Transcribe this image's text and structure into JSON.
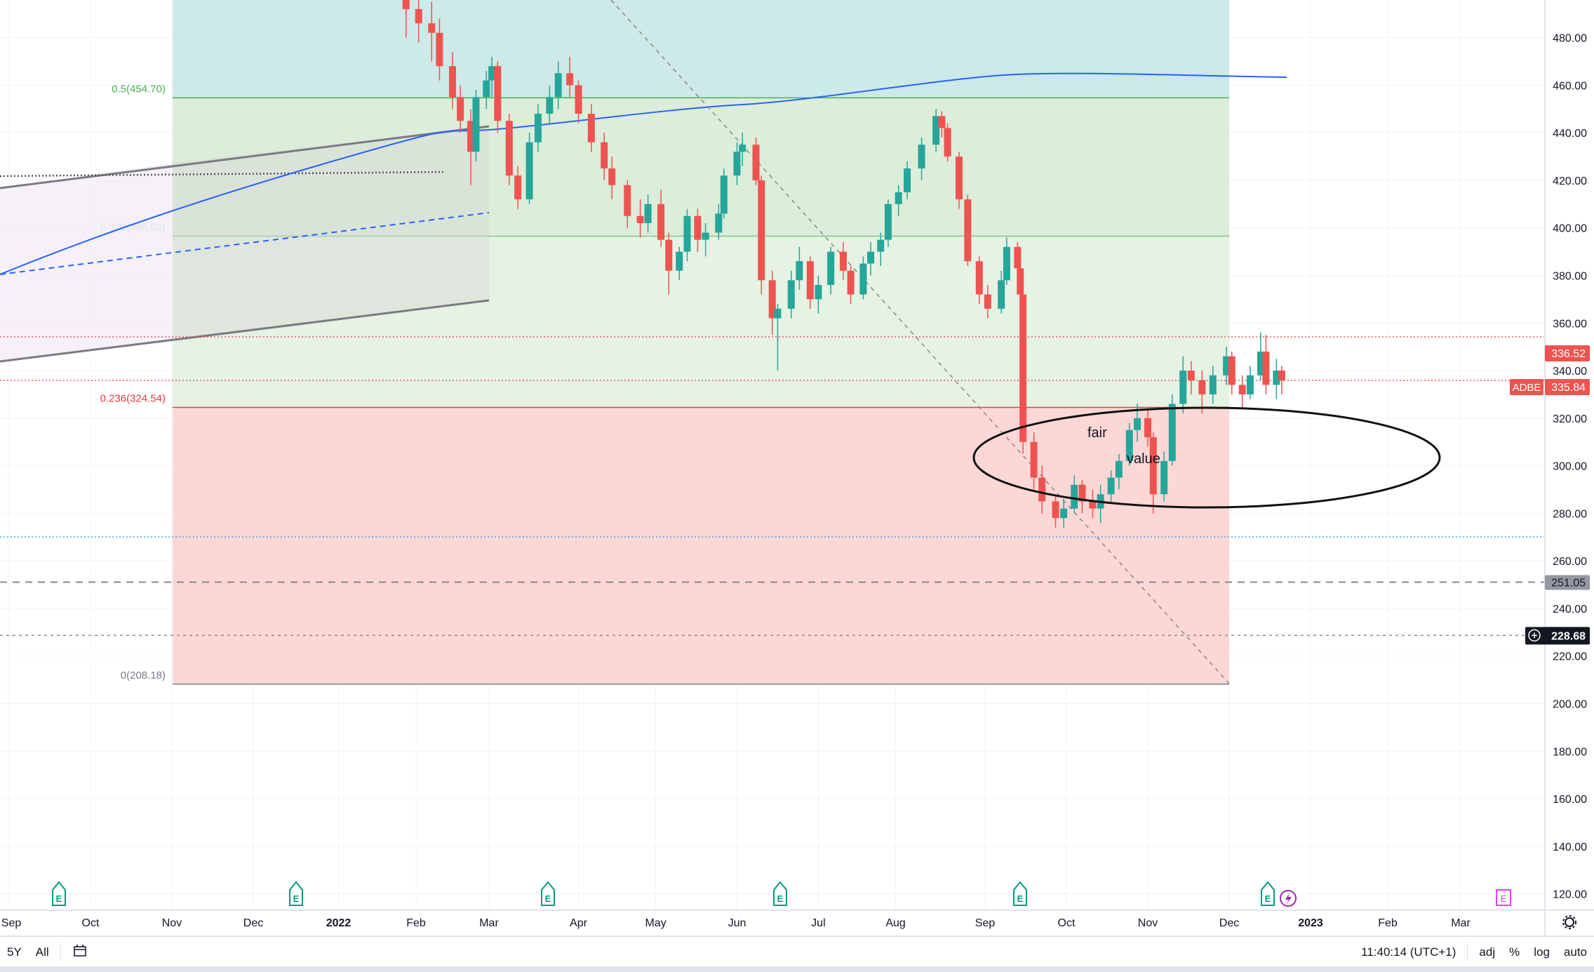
{
  "chart_data": {
    "type": "candlestick",
    "symbol": "ADBE",
    "price_axis": {
      "ticks": [
        "480.00",
        "460.00",
        "440.00",
        "420.00",
        "400.00",
        "380.00",
        "360.00",
        "340.00",
        "320.00",
        "300.00",
        "280.00",
        "260.00",
        "240.00",
        "220.00",
        "200.00",
        "180.00",
        "160.00",
        "140.00",
        "120.00"
      ],
      "range": [
        120,
        480
      ]
    },
    "time_axis": {
      "ticks": [
        "Sep",
        "Oct",
        "Nov",
        "Dec",
        "2022",
        "Feb",
        "Mar",
        "Apr",
        "May",
        "Jun",
        "Jul",
        "Aug",
        "Sep",
        "Oct",
        "Nov",
        "Dec",
        "2023",
        "Feb",
        "Mar"
      ]
    },
    "last_price": "335.84",
    "high_label": "336.52",
    "price_tags": [
      {
        "value": "251.05",
        "style": "gray"
      },
      {
        "value": "228.68",
        "style": "dark"
      }
    ],
    "fib_levels": [
      {
        "label": "0.5(454.70)",
        "price": 454.7,
        "color": "#4caf50"
      },
      {
        "label": "0.382(396.52)",
        "price": 396.52,
        "color": "#81c784"
      },
      {
        "label": "0.236(324.54)",
        "price": 324.54,
        "color": "#f23645"
      },
      {
        "label": "0(208.18)",
        "price": 208.18,
        "color": "#787b86"
      }
    ],
    "annotations": [
      "fair",
      "value"
    ],
    "colors": {
      "up": "#26a69a",
      "down": "#ef5350",
      "sma": "#2962ff"
    },
    "candles": [
      [
        "2022-01-28",
        505,
        510,
        480,
        492
      ],
      [
        "2022-02-02",
        492,
        500,
        478,
        486
      ],
      [
        "2022-02-07",
        486,
        495,
        470,
        482
      ],
      [
        "2022-02-10",
        482,
        488,
        462,
        468
      ],
      [
        "2022-02-15",
        468,
        474,
        450,
        455
      ],
      [
        "2022-02-18",
        455,
        460,
        440,
        445
      ],
      [
        "2022-02-22",
        445,
        450,
        418,
        432
      ],
      [
        "2022-02-24",
        432,
        458,
        428,
        455
      ],
      [
        "2022-02-28",
        455,
        466,
        450,
        462
      ],
      [
        "2022-03-02",
        462,
        472,
        455,
        468
      ],
      [
        "2022-03-04",
        468,
        470,
        440,
        445
      ],
      [
        "2022-03-08",
        445,
        448,
        418,
        422
      ],
      [
        "2022-03-11",
        422,
        426,
        408,
        412
      ],
      [
        "2022-03-15",
        412,
        440,
        410,
        436
      ],
      [
        "2022-03-18",
        436,
        452,
        432,
        448
      ],
      [
        "2022-03-22",
        448,
        460,
        444,
        455
      ],
      [
        "2022-03-25",
        455,
        470,
        450,
        465
      ],
      [
        "2022-03-29",
        465,
        472,
        455,
        460
      ],
      [
        "2022-04-01",
        460,
        462,
        444,
        448
      ],
      [
        "2022-04-06",
        448,
        452,
        432,
        436
      ],
      [
        "2022-04-11",
        436,
        440,
        420,
        425
      ],
      [
        "2022-04-14",
        425,
        430,
        412,
        418
      ],
      [
        "2022-04-20",
        418,
        420,
        400,
        405
      ],
      [
        "2022-04-25",
        405,
        412,
        396,
        402
      ],
      [
        "2022-04-28",
        402,
        414,
        398,
        410
      ],
      [
        "2022-05-03",
        410,
        416,
        392,
        395
      ],
      [
        "2022-05-06",
        395,
        398,
        372,
        382
      ],
      [
        "2022-05-10",
        382,
        392,
        378,
        390
      ],
      [
        "2022-05-13",
        390,
        408,
        386,
        405
      ],
      [
        "2022-05-17",
        405,
        408,
        390,
        395
      ],
      [
        "2022-05-20",
        395,
        402,
        388,
        398
      ],
      [
        "2022-05-25",
        398,
        410,
        395,
        406
      ],
      [
        "2022-05-27",
        406,
        425,
        404,
        422
      ],
      [
        "2022-06-01",
        422,
        436,
        418,
        432
      ],
      [
        "2022-06-03",
        432,
        440,
        426,
        435
      ],
      [
        "2022-06-08",
        435,
        438,
        418,
        420
      ],
      [
        "2022-06-10",
        420,
        422,
        372,
        378
      ],
      [
        "2022-06-14",
        378,
        382,
        355,
        362
      ],
      [
        "2022-06-16",
        362,
        368,
        340,
        366
      ],
      [
        "2022-06-21",
        366,
        382,
        362,
        378
      ],
      [
        "2022-06-24",
        378,
        392,
        374,
        386
      ],
      [
        "2022-06-28",
        386,
        388,
        366,
        370
      ],
      [
        "2022-07-01",
        370,
        380,
        364,
        376
      ],
      [
        "2022-07-06",
        376,
        392,
        372,
        390
      ],
      [
        "2022-07-11",
        390,
        394,
        378,
        382
      ],
      [
        "2022-07-14",
        382,
        384,
        368,
        372
      ],
      [
        "2022-07-19",
        372,
        388,
        370,
        385
      ],
      [
        "2022-07-22",
        385,
        394,
        380,
        390
      ],
      [
        "2022-07-26",
        390,
        398,
        384,
        395
      ],
      [
        "2022-07-29",
        395,
        412,
        392,
        410
      ],
      [
        "2022-08-02",
        410,
        418,
        405,
        415
      ],
      [
        "2022-08-05",
        415,
        428,
        412,
        425
      ],
      [
        "2022-08-10",
        425,
        438,
        420,
        435
      ],
      [
        "2022-08-15",
        435,
        450,
        432,
        447
      ],
      [
        "2022-08-17",
        447,
        449,
        438,
        442
      ],
      [
        "2022-08-19",
        442,
        444,
        428,
        430
      ],
      [
        "2022-08-23",
        430,
        432,
        408,
        412
      ],
      [
        "2022-08-26",
        412,
        414,
        384,
        386
      ],
      [
        "2022-08-30",
        386,
        388,
        368,
        372
      ],
      [
        "2022-09-02",
        372,
        376,
        362,
        366
      ],
      [
        "2022-09-07",
        366,
        382,
        364,
        378
      ],
      [
        "2022-09-09",
        378,
        396,
        376,
        392
      ],
      [
        "2022-09-13",
        392,
        394,
        376,
        383
      ],
      [
        "2022-09-14",
        383,
        385,
        368,
        372
      ],
      [
        "2022-09-15",
        372,
        374,
        305,
        310
      ],
      [
        "2022-09-19",
        310,
        314,
        290,
        295
      ],
      [
        "2022-09-22",
        295,
        300,
        280,
        285
      ],
      [
        "2022-09-27",
        285,
        288,
        274,
        278
      ],
      [
        "2022-09-30",
        278,
        286,
        274,
        282
      ],
      [
        "2022-10-04",
        282,
        296,
        280,
        292
      ],
      [
        "2022-10-07",
        292,
        294,
        280,
        285
      ],
      [
        "2022-10-11",
        285,
        290,
        278,
        282
      ],
      [
        "2022-10-14",
        282,
        292,
        276,
        288
      ],
      [
        "2022-10-18",
        288,
        298,
        284,
        295
      ],
      [
        "2022-10-21",
        295,
        305,
        290,
        302
      ],
      [
        "2022-10-25",
        302,
        318,
        300,
        315
      ],
      [
        "2022-10-28",
        315,
        326,
        310,
        320
      ],
      [
        "2022-11-01",
        320,
        324,
        308,
        312
      ],
      [
        "2022-11-03",
        312,
        314,
        280,
        288
      ],
      [
        "2022-11-07",
        288,
        306,
        285,
        302
      ],
      [
        "2022-11-10",
        302,
        330,
        300,
        326
      ],
      [
        "2022-11-14",
        326,
        346,
        322,
        340
      ],
      [
        "2022-11-17",
        340,
        344,
        330,
        336
      ],
      [
        "2022-11-21",
        336,
        340,
        322,
        330
      ],
      [
        "2022-11-25",
        330,
        342,
        326,
        338
      ],
      [
        "2022-11-30",
        338,
        350,
        334,
        346
      ],
      [
        "2022-12-02",
        346,
        348,
        330,
        334
      ],
      [
        "2022-12-06",
        334,
        338,
        324,
        330
      ],
      [
        "2022-12-09",
        330,
        342,
        328,
        338
      ],
      [
        "2022-12-13",
        338,
        356,
        336,
        348
      ],
      [
        "2022-12-15",
        348,
        355,
        330,
        334
      ],
      [
        "2022-12-19",
        334,
        345,
        328,
        340
      ],
      [
        "2022-12-21",
        340,
        342,
        330,
        335.84
      ]
    ]
  },
  "bottom_bar": {
    "range_5y": "5Y",
    "range_all": "All",
    "clock": "11:40:14 (UTC+1)",
    "adj": "adj",
    "percent": "%",
    "log": "log",
    "auto": "auto"
  }
}
